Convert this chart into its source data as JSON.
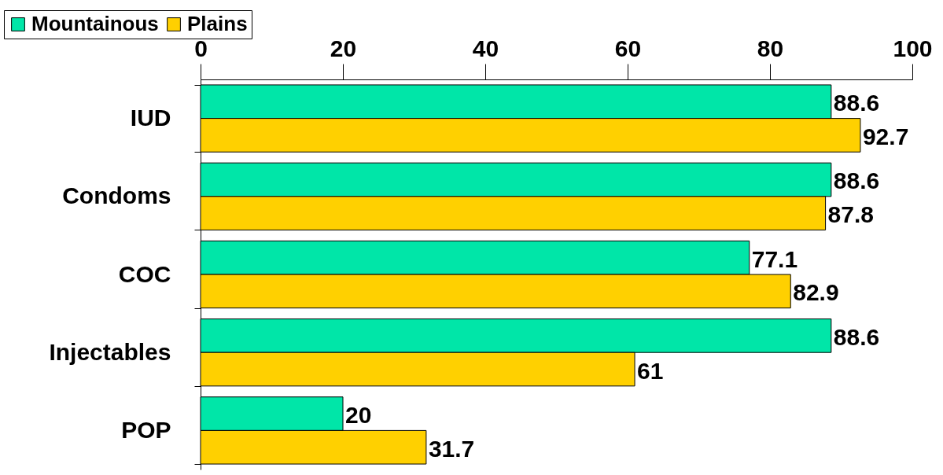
{
  "chart_data": {
    "type": "bar",
    "orientation": "horizontal",
    "categories": [
      "IUD",
      "Condoms",
      "COC",
      "Injectables",
      "POP"
    ],
    "series": [
      {
        "name": "Mountainous",
        "color": "#00e6a8",
        "values": [
          88.6,
          88.6,
          77.1,
          88.6,
          20
        ]
      },
      {
        "name": "Plains",
        "color": "#ffd000",
        "values": [
          92.7,
          87.8,
          82.9,
          61,
          31.7
        ]
      }
    ],
    "xlim": [
      0,
      100
    ],
    "xticks": [
      0,
      20,
      40,
      60,
      80,
      100
    ],
    "grid": false,
    "legend": "top left",
    "data_labels": true
  }
}
